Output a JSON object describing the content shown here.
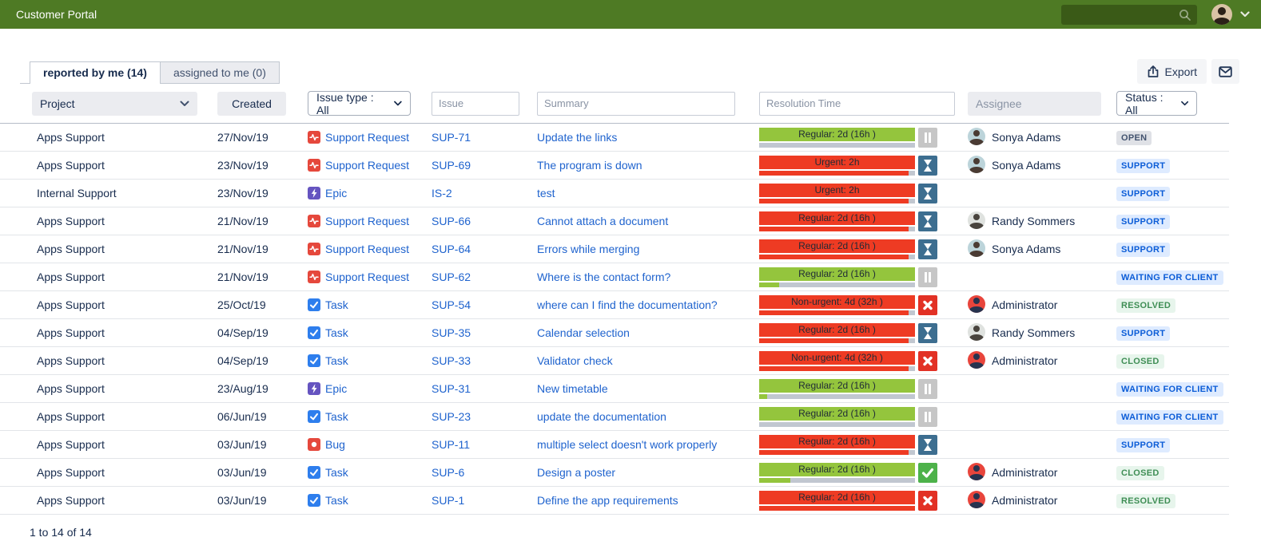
{
  "topbar": {
    "title": "Customer Portal",
    "search_value": "",
    "user_avatar": "user"
  },
  "tabs": {
    "reported": "reported by me (14)",
    "assigned": "assigned to me (0)"
  },
  "actions": {
    "export_label": "Export",
    "export_icon": "export-icon",
    "mail_icon": "mail-icon"
  },
  "filters": {
    "project": {
      "label": "Project"
    },
    "created": {
      "label": "Created"
    },
    "issue_type": {
      "label": "Issue type : All"
    },
    "issue": {
      "placeholder": "Issue"
    },
    "summary": {
      "placeholder": "Summary"
    },
    "resolution_time": {
      "placeholder": "Resolution Time"
    },
    "assignee": {
      "label": "Assignee"
    },
    "status": {
      "label": "Status : All"
    }
  },
  "colors": {
    "header_green": "#4e7a24",
    "search_green": "#3a5a17",
    "link_blue": "#1f63ce",
    "sla_green": "#94c53d",
    "sla_red": "#ee3b23",
    "pause_gray": "#c6c6c6",
    "hourglass_blue": "#3d6e90",
    "cross_red": "#e23125",
    "check_green": "#4db24a",
    "badge_blue_bg": "#deebff",
    "badge_green_bg": "#e7f5ec",
    "badge_neutral_bg": "#dfe1e6"
  },
  "table": {
    "rows": [
      {
        "project": "Apps Support",
        "created": "27/Nov/19",
        "type": {
          "label": "Support Request",
          "icon": "support-request-icon"
        },
        "key": "SUP-71",
        "summary": "Update the links",
        "sla": {
          "label": "Regular: 2d (16h )",
          "level": "green",
          "progress_pct": 0,
          "icon": "pause-icon"
        },
        "assignee": {
          "name": "Sonya Adams",
          "avatar": "sonya"
        },
        "status": {
          "label": "OPEN",
          "kind": "neutral"
        }
      },
      {
        "project": "Apps Support",
        "created": "23/Nov/19",
        "type": {
          "label": "Support Request",
          "icon": "support-request-icon"
        },
        "key": "SUP-69",
        "summary": "The program is down",
        "sla": {
          "label": "Urgent: 2h",
          "level": "red",
          "progress_pct": 96,
          "icon": "hourglass-icon"
        },
        "assignee": {
          "name": "Sonya Adams",
          "avatar": "sonya"
        },
        "status": {
          "label": "SUPPORT",
          "kind": "blue"
        }
      },
      {
        "project": "Internal Support",
        "created": "23/Nov/19",
        "type": {
          "label": "Epic",
          "icon": "epic-icon"
        },
        "key": "IS-2",
        "summary": "test",
        "sla": {
          "label": "Urgent: 2h",
          "level": "red",
          "progress_pct": 96,
          "icon": "hourglass-icon"
        },
        "assignee": null,
        "status": {
          "label": "SUPPORT",
          "kind": "blue"
        }
      },
      {
        "project": "Apps Support",
        "created": "21/Nov/19",
        "type": {
          "label": "Support Request",
          "icon": "support-request-icon"
        },
        "key": "SUP-66",
        "summary": "Cannot attach a document",
        "sla": {
          "label": "Regular: 2d (16h )",
          "level": "red",
          "progress_pct": 96,
          "icon": "hourglass-icon"
        },
        "assignee": {
          "name": "Randy Sommers",
          "avatar": "randy"
        },
        "status": {
          "label": "SUPPORT",
          "kind": "blue"
        }
      },
      {
        "project": "Apps Support",
        "created": "21/Nov/19",
        "type": {
          "label": "Support Request",
          "icon": "support-request-icon"
        },
        "key": "SUP-64",
        "summary": "Errors while merging",
        "sla": {
          "label": "Regular: 2d (16h )",
          "level": "red",
          "progress_pct": 96,
          "icon": "hourglass-icon"
        },
        "assignee": {
          "name": "Sonya Adams",
          "avatar": "sonya"
        },
        "status": {
          "label": "SUPPORT",
          "kind": "blue"
        }
      },
      {
        "project": "Apps Support",
        "created": "21/Nov/19",
        "type": {
          "label": "Support Request",
          "icon": "support-request-icon"
        },
        "key": "SUP-62",
        "summary": "Where is the contact form?",
        "sla": {
          "label": "Regular: 2d (16h )",
          "level": "green",
          "progress_pct": 13,
          "icon": "pause-icon"
        },
        "assignee": null,
        "status": {
          "label": "WAITING FOR CLIENT",
          "kind": "blue"
        }
      },
      {
        "project": "Apps Support",
        "created": "25/Oct/19",
        "type": {
          "label": "Task",
          "icon": "task-icon"
        },
        "key": "SUP-54",
        "summary": "where can I find the documentation?",
        "sla": {
          "label": "Non-urgent: 4d (32h )",
          "level": "red",
          "progress_pct": 96,
          "icon": "cross-icon"
        },
        "assignee": {
          "name": "Administrator",
          "avatar": "admin"
        },
        "status": {
          "label": "RESOLVED",
          "kind": "green"
        }
      },
      {
        "project": "Apps Support",
        "created": "04/Sep/19",
        "type": {
          "label": "Task",
          "icon": "task-icon"
        },
        "key": "SUP-35",
        "summary": "Calendar selection",
        "sla": {
          "label": "Regular: 2d (16h )",
          "level": "red",
          "progress_pct": 96,
          "icon": "hourglass-icon"
        },
        "assignee": {
          "name": "Randy Sommers",
          "avatar": "randy"
        },
        "status": {
          "label": "SUPPORT",
          "kind": "blue"
        }
      },
      {
        "project": "Apps Support",
        "created": "04/Sep/19",
        "type": {
          "label": "Task",
          "icon": "task-icon"
        },
        "key": "SUP-33",
        "summary": "Validator check",
        "sla": {
          "label": "Non-urgent: 4d (32h )",
          "level": "red",
          "progress_pct": 96,
          "icon": "cross-icon"
        },
        "assignee": {
          "name": "Administrator",
          "avatar": "admin"
        },
        "status": {
          "label": "CLOSED",
          "kind": "green"
        }
      },
      {
        "project": "Apps Support",
        "created": "23/Aug/19",
        "type": {
          "label": "Epic",
          "icon": "epic-icon"
        },
        "key": "SUP-31",
        "summary": "New timetable",
        "sla": {
          "label": "Regular: 2d (16h )",
          "level": "green",
          "progress_pct": 5,
          "icon": "pause-icon"
        },
        "assignee": null,
        "status": {
          "label": "WAITING FOR CLIENT",
          "kind": "blue"
        }
      },
      {
        "project": "Apps Support",
        "created": "06/Jun/19",
        "type": {
          "label": "Task",
          "icon": "task-icon"
        },
        "key": "SUP-23",
        "summary": "update the documentation",
        "sla": {
          "label": "Regular: 2d (16h )",
          "level": "green",
          "progress_pct": 0,
          "icon": "pause-icon"
        },
        "assignee": null,
        "status": {
          "label": "WAITING FOR CLIENT",
          "kind": "blue"
        }
      },
      {
        "project": "Apps Support",
        "created": "03/Jun/19",
        "type": {
          "label": "Bug",
          "icon": "bug-icon"
        },
        "key": "SUP-11",
        "summary": "multiple select doesn't work properly",
        "sla": {
          "label": "Regular: 2d (16h )",
          "level": "red",
          "progress_pct": 96,
          "icon": "hourglass-icon"
        },
        "assignee": null,
        "status": {
          "label": "SUPPORT",
          "kind": "blue"
        }
      },
      {
        "project": "Apps Support",
        "created": "03/Jun/19",
        "type": {
          "label": "Task",
          "icon": "task-icon"
        },
        "key": "SUP-6",
        "summary": "Design a poster",
        "sla": {
          "label": "Regular: 2d (16h )",
          "level": "green",
          "progress_pct": 20,
          "icon": "check-icon"
        },
        "assignee": {
          "name": "Administrator",
          "avatar": "admin"
        },
        "status": {
          "label": "CLOSED",
          "kind": "green"
        }
      },
      {
        "project": "Apps Support",
        "created": "03/Jun/19",
        "type": {
          "label": "Task",
          "icon": "task-icon"
        },
        "key": "SUP-1",
        "summary": "Define the app requirements",
        "sla": {
          "label": "Regular: 2d (16h )",
          "level": "red",
          "progress_pct": 100,
          "icon": "cross-icon"
        },
        "assignee": {
          "name": "Administrator",
          "avatar": "admin"
        },
        "status": {
          "label": "RESOLVED",
          "kind": "green"
        }
      }
    ]
  },
  "footer": {
    "range_text": "1 to 14 of 14"
  }
}
